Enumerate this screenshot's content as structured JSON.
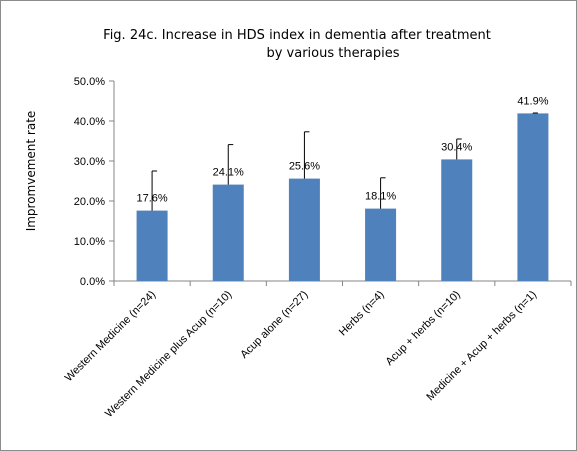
{
  "chart_data": {
    "type": "bar",
    "title_line1": "Fig. 24c.  Increase in HDS index in dementia after treatment",
    "title_line2": "by various therapies",
    "ylabel": "Impromvement rate",
    "xlabel": "",
    "ylim": [
      0,
      50
    ],
    "ytick_values": [
      0,
      10,
      20,
      30,
      40,
      50
    ],
    "ytick_labels": [
      "0.0%",
      "10.0%",
      "20.0%",
      "30.0%",
      "40.0%",
      "50.0%"
    ],
    "categories": [
      "Western Medicine (n=24)",
      "Western Medicine plus Acup (n=10)",
      "Acup alone (n=27)",
      "Herbs (n=4)",
      "Acup + herbs (n=10)",
      "Medicine + Acup + herbs (n=1)"
    ],
    "values": [
      17.6,
      24.1,
      25.6,
      18.1,
      30.4,
      41.9
    ],
    "data_labels": [
      "17.6%",
      "24.1%",
      "25.6%",
      "18.1%",
      "30.4%",
      "41.9%"
    ],
    "error_plus": [
      9.9,
      10.0,
      11.7,
      7.7,
      5.1,
      0.1
    ],
    "bar_color": "#4f81bd",
    "grid": false,
    "legend": "none"
  }
}
